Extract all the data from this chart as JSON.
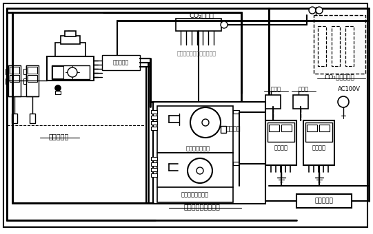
{
  "fig_w": 5.41,
  "fig_h": 3.4,
  "dpi": 100,
  "labels": {
    "welding_machine": "溶接機本体",
    "control_box": "制御操作箱",
    "co2_distributor": "CO₂分配器",
    "connect_other": "他のワイヤ送給装置に接続",
    "co2_cylinder": "CO₂集合ボンベ",
    "distribution_board1": "分電盤",
    "distribution_board2": "分電盤",
    "ac100v": "AC100V",
    "wire_feeder": "ワイヤ送給装置",
    "shunt": "シャント",
    "wire_relay_box": "ワイヤ送給中継箱",
    "wire_feed_unit": "ワイヤ送給ユニット",
    "welding_power1": "溶接電源",
    "welding_power2": "溶接電源",
    "power_relay_box": "電源中継箱"
  }
}
